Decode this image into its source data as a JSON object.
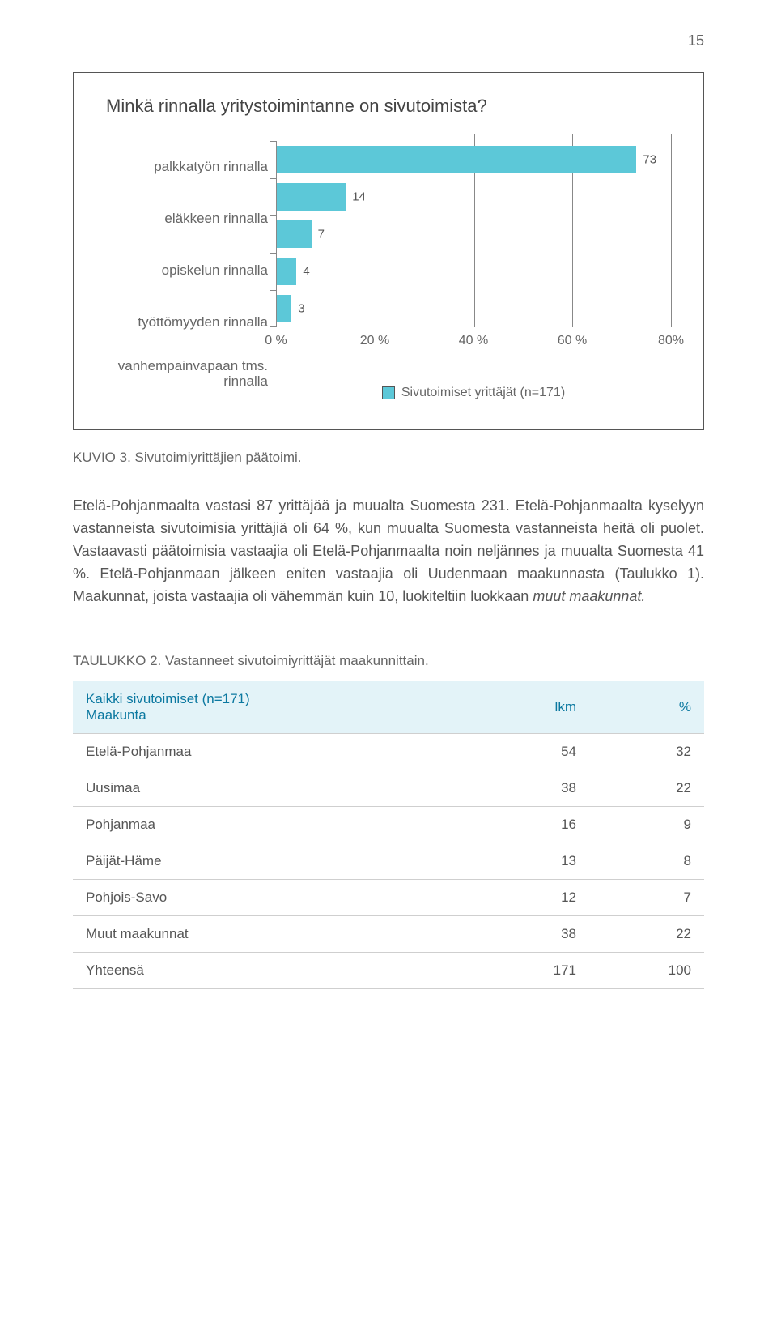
{
  "page_number": "15",
  "chart": {
    "type": "bar-horizontal",
    "title": "Minkä rinnalla yritystoimintanne on sivutoimista?",
    "categories": [
      "palkkatyön rinnalla",
      "eläkkeen rinnalla",
      "opiskelun rinnalla",
      "työttömyyden rinnalla",
      "vanhempainvapaan tms. rinnalla"
    ],
    "values": [
      73,
      14,
      7,
      4,
      3
    ],
    "bar_color": "#5cc8d8",
    "legend_label": "Sivutoimiset yrittäjät (n=171)",
    "x_ticks": [
      "0 %",
      "20 %",
      "40 %",
      "60 %",
      "80%"
    ],
    "x_tick_positions_pct": [
      0,
      25,
      50,
      75,
      100
    ],
    "xlim": [
      0,
      80
    ],
    "grid_color": "#888888",
    "background_color": "#ffffff",
    "title_fontsize": 22,
    "label_fontsize": 17
  },
  "caption": "KUVIO 3. Sivutoimiyrittäjien päätoimi.",
  "body_html": "Etelä-Pohjanmaalta vastasi 87 yrittäjää ja muualta Suomesta 231. Etelä-Pohjanmaalta kyselyyn vastanneista sivutoimisia yrittäjiä oli 64 %, kun muualta Suomesta vastanneista heitä oli puolet. Vastaavasti päätoimisia vastaajia oli Etelä-Pohjanmaalta noin neljännes ja muualta Suomesta 41 %. Etelä-Pohjanmaan jälkeen eniten vastaajia oli Uudenmaan maakunnasta (Taulukko 1). Maakunnat, joista vastaajia oli vähemmän kuin 10, luokiteltiin luokkaan <span class=\"italic\">muut maakunnat.</span>",
  "table": {
    "title": "TAULUKKO 2. Vastanneet sivutoimiyrittäjät maakunnittain.",
    "header_line1": "Kaikki sivutoimiset (n=171)",
    "header_line2": "Maakunta",
    "col_lkm": "lkm",
    "col_pct": "%",
    "header_bg": "#e3f3f8",
    "header_color": "#0b78a0",
    "border_color": "#cfcfcf",
    "rows": [
      {
        "name": "Etelä-Pohjanmaa",
        "lkm": "54",
        "pct": "32"
      },
      {
        "name": "Uusimaa",
        "lkm": "38",
        "pct": "22"
      },
      {
        "name": "Pohjanmaa",
        "lkm": "16",
        "pct": "9"
      },
      {
        "name": "Päijät-Häme",
        "lkm": "13",
        "pct": "8"
      },
      {
        "name": "Pohjois-Savo",
        "lkm": "12",
        "pct": "7"
      },
      {
        "name": "Muut maakunnat",
        "lkm": "38",
        "pct": "22"
      },
      {
        "name": "Yhteensä",
        "lkm": "171",
        "pct": "100"
      }
    ]
  }
}
